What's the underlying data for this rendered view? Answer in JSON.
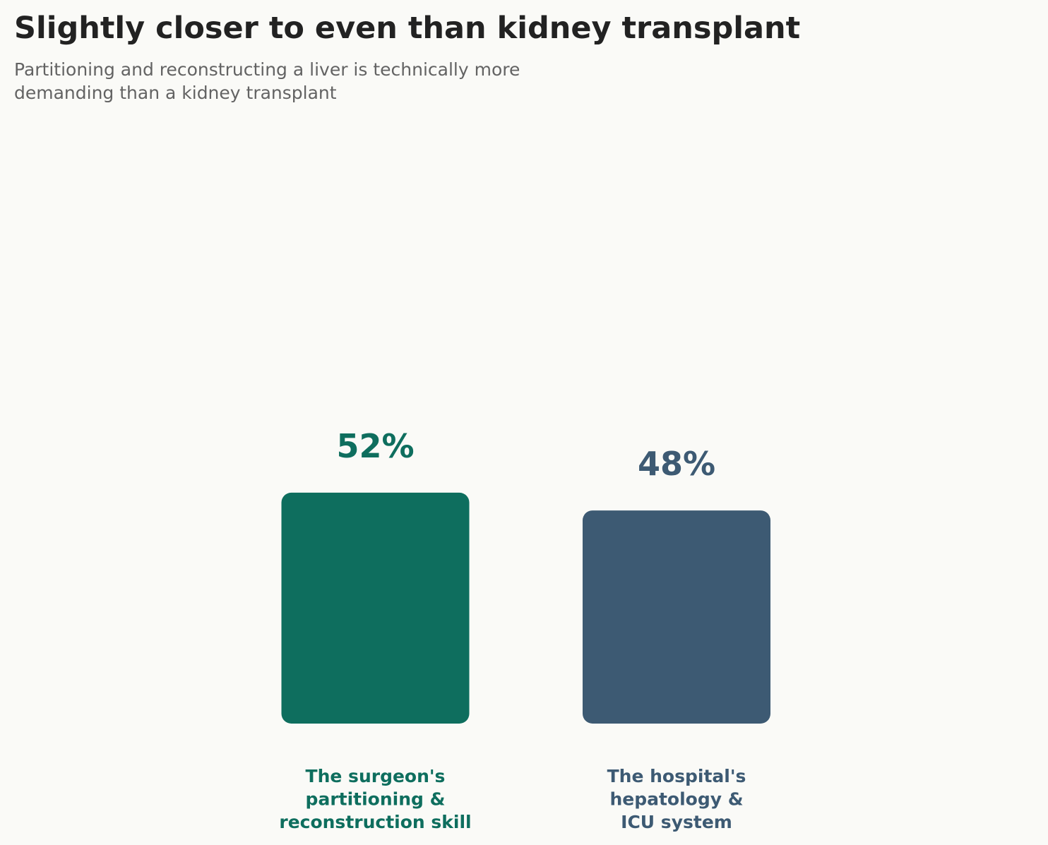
{
  "title": "Slightly closer to even than kidney transplant",
  "subtitle": "Partitioning and reconstructing a liver is technically more demanding than a kidney transplant",
  "chart_data": {
    "type": "bar",
    "title": "Slightly closer to even than kidney transplant",
    "subtitle": "Partitioning and reconstructing a liver is technically more demanding than a kidney transplant",
    "categories": [
      [
        "The surgeon's",
        "partitioning &",
        "reconstruction skill"
      ],
      [
        "The hospital's",
        "hepatology &",
        "ICU system"
      ]
    ],
    "values": [
      52,
      48
    ],
    "value_labels": [
      "52%",
      "48%"
    ],
    "colors": [
      "#0E6E5E",
      "#3D5A73"
    ],
    "unit": "%",
    "grid": false,
    "axes_visible": false,
    "legend": "none"
  }
}
